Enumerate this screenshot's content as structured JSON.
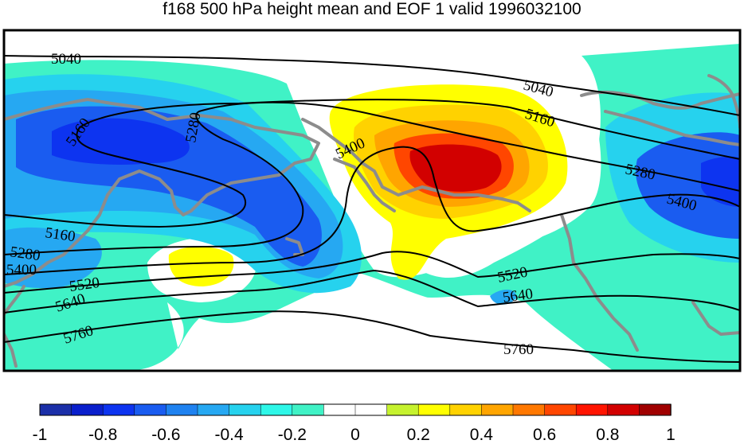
{
  "title": "f168 500 hPa height mean and EOF 1 valid 1996032100",
  "contour_labels": [
    "5040",
    "5040",
    "5160",
    "5160",
    "5160",
    "5280",
    "5280",
    "5280",
    "5400",
    "5400",
    "5400",
    "5520",
    "5520",
    "5640",
    "5640",
    "5760",
    "5760"
  ],
  "colorbar": {
    "ticks": [
      "-1",
      "-0.8",
      "-0.6",
      "-0.4",
      "-0.2",
      "0",
      "0.2",
      "0.4",
      "0.6",
      "0.8",
      "1"
    ],
    "colors": [
      "#1b2fa8",
      "#0a1fcc",
      "#0d34f0",
      "#1a5cf0",
      "#1f82f0",
      "#26a8f2",
      "#26d2ee",
      "#2ef7e8",
      "#40f2c6",
      "#ffffff",
      "#ffffff",
      "#c6f22e",
      "#ffff00",
      "#ffd200",
      "#ffa500",
      "#ff7800",
      "#ff4600",
      "#ff1400",
      "#d20000",
      "#a00000"
    ]
  },
  "colors": {
    "neg_light": "#40f2c6",
    "neg_mid": "#26d2ee",
    "neg_blue": "#26a8f2",
    "neg_strong": "#1a5cf0",
    "neg_deep": "#0d34f0",
    "pos_yellow": "#ffff00",
    "pos_gold": "#ffd200",
    "pos_orange": "#ffa500",
    "pos_red": "#ff4600",
    "pos_dark": "#d20000",
    "coast": "#8c8c8c"
  }
}
